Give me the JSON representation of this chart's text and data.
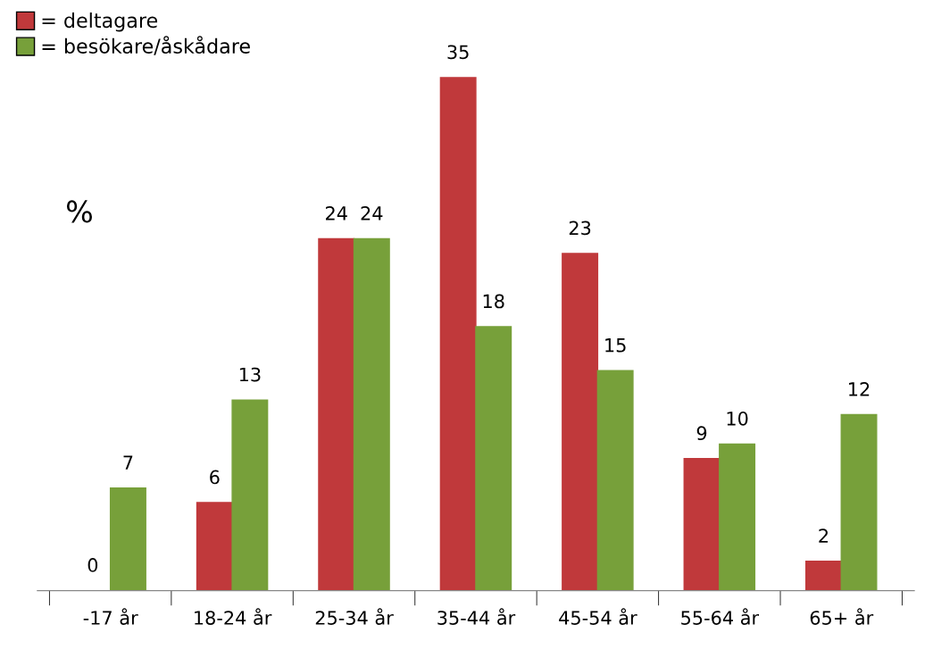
{
  "chart_data": {
    "type": "bar",
    "ylabel": "%",
    "categories": [
      "-17 år",
      "18-24 år",
      "25-34 år",
      "35-44 år",
      "45-54 år",
      "55-64 år",
      "65+ år"
    ],
    "series": [
      {
        "name": "= deltagare",
        "color": "#c0393b",
        "values": [
          0,
          6,
          24,
          35,
          23,
          9,
          2
        ]
      },
      {
        "name": "= besökare/åskådare",
        "color": "#77a03a",
        "values": [
          7,
          13,
          24,
          18,
          15,
          10,
          12
        ]
      }
    ],
    "data_labels": true,
    "legend": "top left",
    "grid": false
  }
}
